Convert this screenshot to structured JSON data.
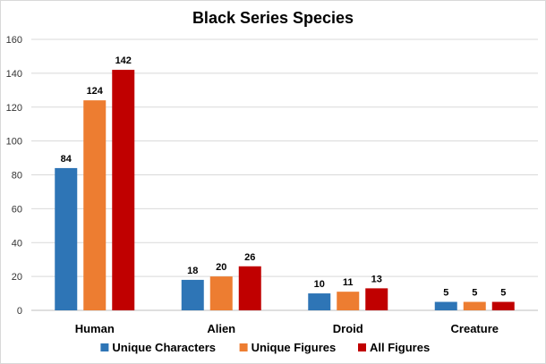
{
  "chart_data": {
    "type": "bar",
    "title": "Black Series Species",
    "categories": [
      "Human",
      "Alien",
      "Droid",
      "Creature"
    ],
    "series": [
      {
        "name": "Unique Characters",
        "color": "#2e75b6",
        "values": [
          84,
          18,
          10,
          5
        ]
      },
      {
        "name": "Unique Figures",
        "color": "#ed7d31",
        "values": [
          124,
          20,
          11,
          5
        ]
      },
      {
        "name": "All Figures",
        "color": "#c00000",
        "values": [
          142,
          26,
          13,
          5
        ]
      }
    ],
    "ylim": [
      0,
      160
    ],
    "yticks": [
      0,
      20,
      40,
      60,
      80,
      100,
      120,
      140,
      160
    ],
    "grid": true,
    "legend": "bottom",
    "data_labels": true
  }
}
